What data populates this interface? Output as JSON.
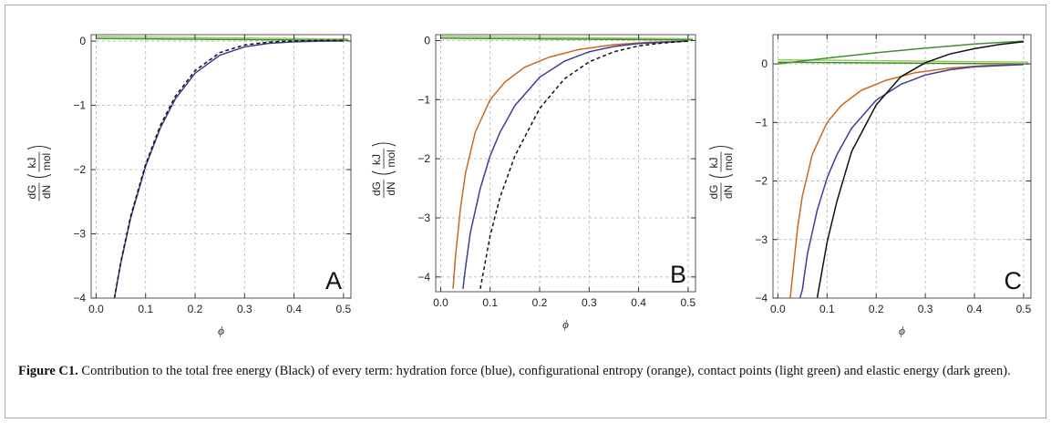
{
  "caption": {
    "figure_label": "Figure C1.",
    "text": "Contribution to the total free energy (Black) of every term: hydration force (blue), configurational entropy (orange), contact points (light green) and elastic energy (dark green)."
  },
  "colors": {
    "total": "#111111",
    "hydration": "#3b3f94",
    "entropy": "#c8691e",
    "contact": "#9acb5a",
    "elastic": "#3f8f2f",
    "grid": "#b0b0b0",
    "frame": "#555555"
  },
  "chart_data": [
    {
      "type": "line",
      "panel": "A",
      "xlabel": "ϕ",
      "ylabel_parts": {
        "numerator": "dG",
        "denominator": "dN",
        "unit_top": "kJ",
        "unit_bottom": "mol"
      },
      "xlim": [
        -0.01,
        0.515
      ],
      "ylim": [
        -4.0,
        0.1
      ],
      "xticks": [
        "0.0",
        "0.1",
        "0.2",
        "0.3",
        "0.4",
        "0.5"
      ],
      "yticks": [
        "0",
        "−1",
        "−2",
        "−3",
        "−4"
      ],
      "grid": true,
      "series": [
        {
          "role": "contact",
          "dash": false,
          "x": [
            0.0,
            0.51
          ],
          "y": [
            0.07,
            0.03
          ]
        },
        {
          "role": "elastic",
          "dash": false,
          "x": [
            0.0,
            0.51
          ],
          "y": [
            0.04,
            0.01
          ]
        },
        {
          "role": "hydration",
          "dash": false,
          "x": [
            0.037,
            0.05,
            0.07,
            0.1,
            0.13,
            0.16,
            0.2,
            0.25,
            0.3,
            0.35,
            0.4,
            0.45,
            0.5
          ],
          "y": [
            -4.0,
            -3.45,
            -2.75,
            -1.95,
            -1.35,
            -0.9,
            -0.5,
            -0.22,
            -0.09,
            -0.035,
            -0.012,
            -0.004,
            0.0
          ]
        },
        {
          "role": "total",
          "dash": true,
          "x": [
            0.037,
            0.05,
            0.07,
            0.1,
            0.13,
            0.16,
            0.2,
            0.25,
            0.3,
            0.35,
            0.4,
            0.45,
            0.5
          ],
          "y": [
            -4.0,
            -3.43,
            -2.72,
            -1.92,
            -1.31,
            -0.86,
            -0.46,
            -0.18,
            -0.06,
            -0.015,
            0.0,
            0.01,
            0.01
          ]
        }
      ]
    },
    {
      "type": "line",
      "panel": "B",
      "xlabel": "ϕ",
      "ylabel_parts": {
        "numerator": "dG",
        "denominator": "dN",
        "unit_top": "kJ",
        "unit_bottom": "mol"
      },
      "xlim": [
        -0.01,
        0.515
      ],
      "ylim": [
        -4.25,
        0.1
      ],
      "xticks": [
        "0.0",
        "0.1",
        "0.2",
        "0.3",
        "0.4",
        "0.5"
      ],
      "yticks": [
        "0",
        "−1",
        "−2",
        "−3",
        "−4"
      ],
      "grid": true,
      "series": [
        {
          "role": "contact",
          "dash": false,
          "x": [
            0.0,
            0.51
          ],
          "y": [
            0.07,
            0.03
          ]
        },
        {
          "role": "elastic",
          "dash": false,
          "x": [
            0.0,
            0.51
          ],
          "y": [
            0.04,
            0.01
          ]
        },
        {
          "role": "entropy",
          "dash": false,
          "x": [
            0.025,
            0.03,
            0.04,
            0.05,
            0.07,
            0.1,
            0.13,
            0.17,
            0.22,
            0.28,
            0.35,
            0.42,
            0.5
          ],
          "y": [
            -4.2,
            -3.65,
            -2.85,
            -2.25,
            -1.55,
            -1.0,
            -0.7,
            -0.45,
            -0.28,
            -0.15,
            -0.07,
            -0.03,
            -0.01
          ]
        },
        {
          "role": "hydration",
          "dash": false,
          "x": [
            0.045,
            0.05,
            0.06,
            0.08,
            0.1,
            0.12,
            0.15,
            0.2,
            0.25,
            0.3,
            0.35,
            0.4,
            0.5
          ],
          "y": [
            -4.2,
            -3.85,
            -3.25,
            -2.5,
            -1.95,
            -1.55,
            -1.1,
            -0.62,
            -0.35,
            -0.19,
            -0.1,
            -0.05,
            -0.01
          ]
        },
        {
          "role": "total",
          "dash": true,
          "x": [
            0.08,
            0.1,
            0.12,
            0.15,
            0.2,
            0.25,
            0.3,
            0.35,
            0.4,
            0.45,
            0.5
          ],
          "y": [
            -4.2,
            -3.3,
            -2.65,
            -1.95,
            -1.15,
            -0.65,
            -0.36,
            -0.19,
            -0.09,
            -0.04,
            -0.01
          ]
        }
      ]
    },
    {
      "type": "line",
      "panel": "C",
      "xlabel": "ϕ",
      "ylabel_parts": {
        "numerator": "dG",
        "denominator": "dN",
        "unit_top": "kJ",
        "unit_bottom": "mol"
      },
      "xlim": [
        -0.01,
        0.515
      ],
      "ylim": [
        -4.0,
        0.5
      ],
      "xticks": [
        "0.0",
        "0.1",
        "0.2",
        "0.3",
        "0.4",
        "0.5"
      ],
      "yticks": [
        "0",
        "−1",
        "−2",
        "−3",
        "−4"
      ],
      "grid": true,
      "series": [
        {
          "role": "contact",
          "dash": false,
          "x": [
            0.0,
            0.51
          ],
          "y": [
            0.07,
            0.03
          ]
        },
        {
          "role": "elastic",
          "dash": false,
          "x": [
            0.0,
            0.1,
            0.2,
            0.3,
            0.4,
            0.5
          ],
          "y": [
            0.0,
            0.1,
            0.19,
            0.27,
            0.34,
            0.39
          ]
        },
        {
          "role": "elastic",
          "dash": false,
          "x": [
            0.0,
            0.51
          ],
          "y": [
            0.03,
            0.0
          ]
        },
        {
          "role": "entropy",
          "dash": false,
          "x": [
            0.025,
            0.03,
            0.04,
            0.05,
            0.07,
            0.1,
            0.13,
            0.17,
            0.22,
            0.28,
            0.35,
            0.42,
            0.5
          ],
          "y": [
            -4.0,
            -3.6,
            -2.8,
            -2.25,
            -1.55,
            -1.0,
            -0.7,
            -0.45,
            -0.28,
            -0.15,
            -0.07,
            -0.03,
            -0.01
          ]
        },
        {
          "role": "hydration",
          "dash": false,
          "x": [
            0.045,
            0.05,
            0.06,
            0.08,
            0.1,
            0.12,
            0.15,
            0.2,
            0.25,
            0.3,
            0.35,
            0.4,
            0.5
          ],
          "y": [
            -4.0,
            -3.85,
            -3.25,
            -2.5,
            -1.95,
            -1.55,
            -1.1,
            -0.62,
            -0.35,
            -0.19,
            -0.1,
            -0.05,
            -0.01
          ]
        },
        {
          "role": "total",
          "dash": false,
          "x": [
            0.08,
            0.1,
            0.12,
            0.15,
            0.2,
            0.25,
            0.3,
            0.35,
            0.4,
            0.45,
            0.5
          ],
          "y": [
            -4.0,
            -3.05,
            -2.35,
            -1.5,
            -0.7,
            -0.22,
            0.02,
            0.17,
            0.26,
            0.33,
            0.38
          ]
        }
      ]
    }
  ]
}
